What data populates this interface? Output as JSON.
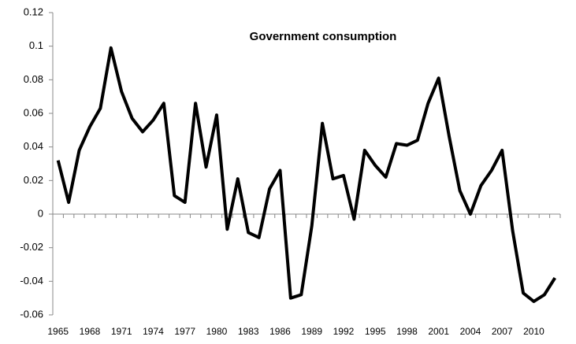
{
  "chart_data": {
    "type": "line",
    "title": "Government consumption",
    "categories": [
      "1965",
      null,
      null,
      "1968",
      null,
      null,
      "1971",
      null,
      null,
      "1974",
      null,
      null,
      "1977",
      null,
      null,
      "1980",
      null,
      null,
      "1983",
      null,
      null,
      "1986",
      null,
      null,
      "1989",
      null,
      null,
      "1992",
      null,
      null,
      "1995",
      null,
      null,
      "1998",
      null,
      null,
      "2001",
      null,
      null,
      "2004",
      null,
      null,
      "2007",
      null,
      null,
      "2010",
      null,
      null
    ],
    "values": [
      0.032,
      0.007,
      0.038,
      0.052,
      0.063,
      0.099,
      0.073,
      0.057,
      0.049,
      0.056,
      0.066,
      0.011,
      0.007,
      0.066,
      0.028,
      0.059,
      -0.009,
      0.021,
      -0.011,
      -0.014,
      0.015,
      0.026,
      -0.05,
      -0.048,
      -0.007,
      0.054,
      0.021,
      0.023,
      -0.003,
      0.038,
      0.029,
      0.022,
      0.042,
      0.041,
      0.044,
      0.066,
      0.081,
      0.046,
      0.014,
      0.0,
      0.017,
      0.026,
      0.038,
      -0.01,
      -0.047,
      -0.052,
      -0.048,
      -0.038
    ],
    "color": "#000000",
    "ylim": [
      -0.06,
      0.12
    ],
    "yticks": [
      -0.06,
      -0.04,
      -0.02,
      0,
      0.02,
      0.04,
      0.06,
      0.08,
      0.1,
      0.12
    ]
  }
}
